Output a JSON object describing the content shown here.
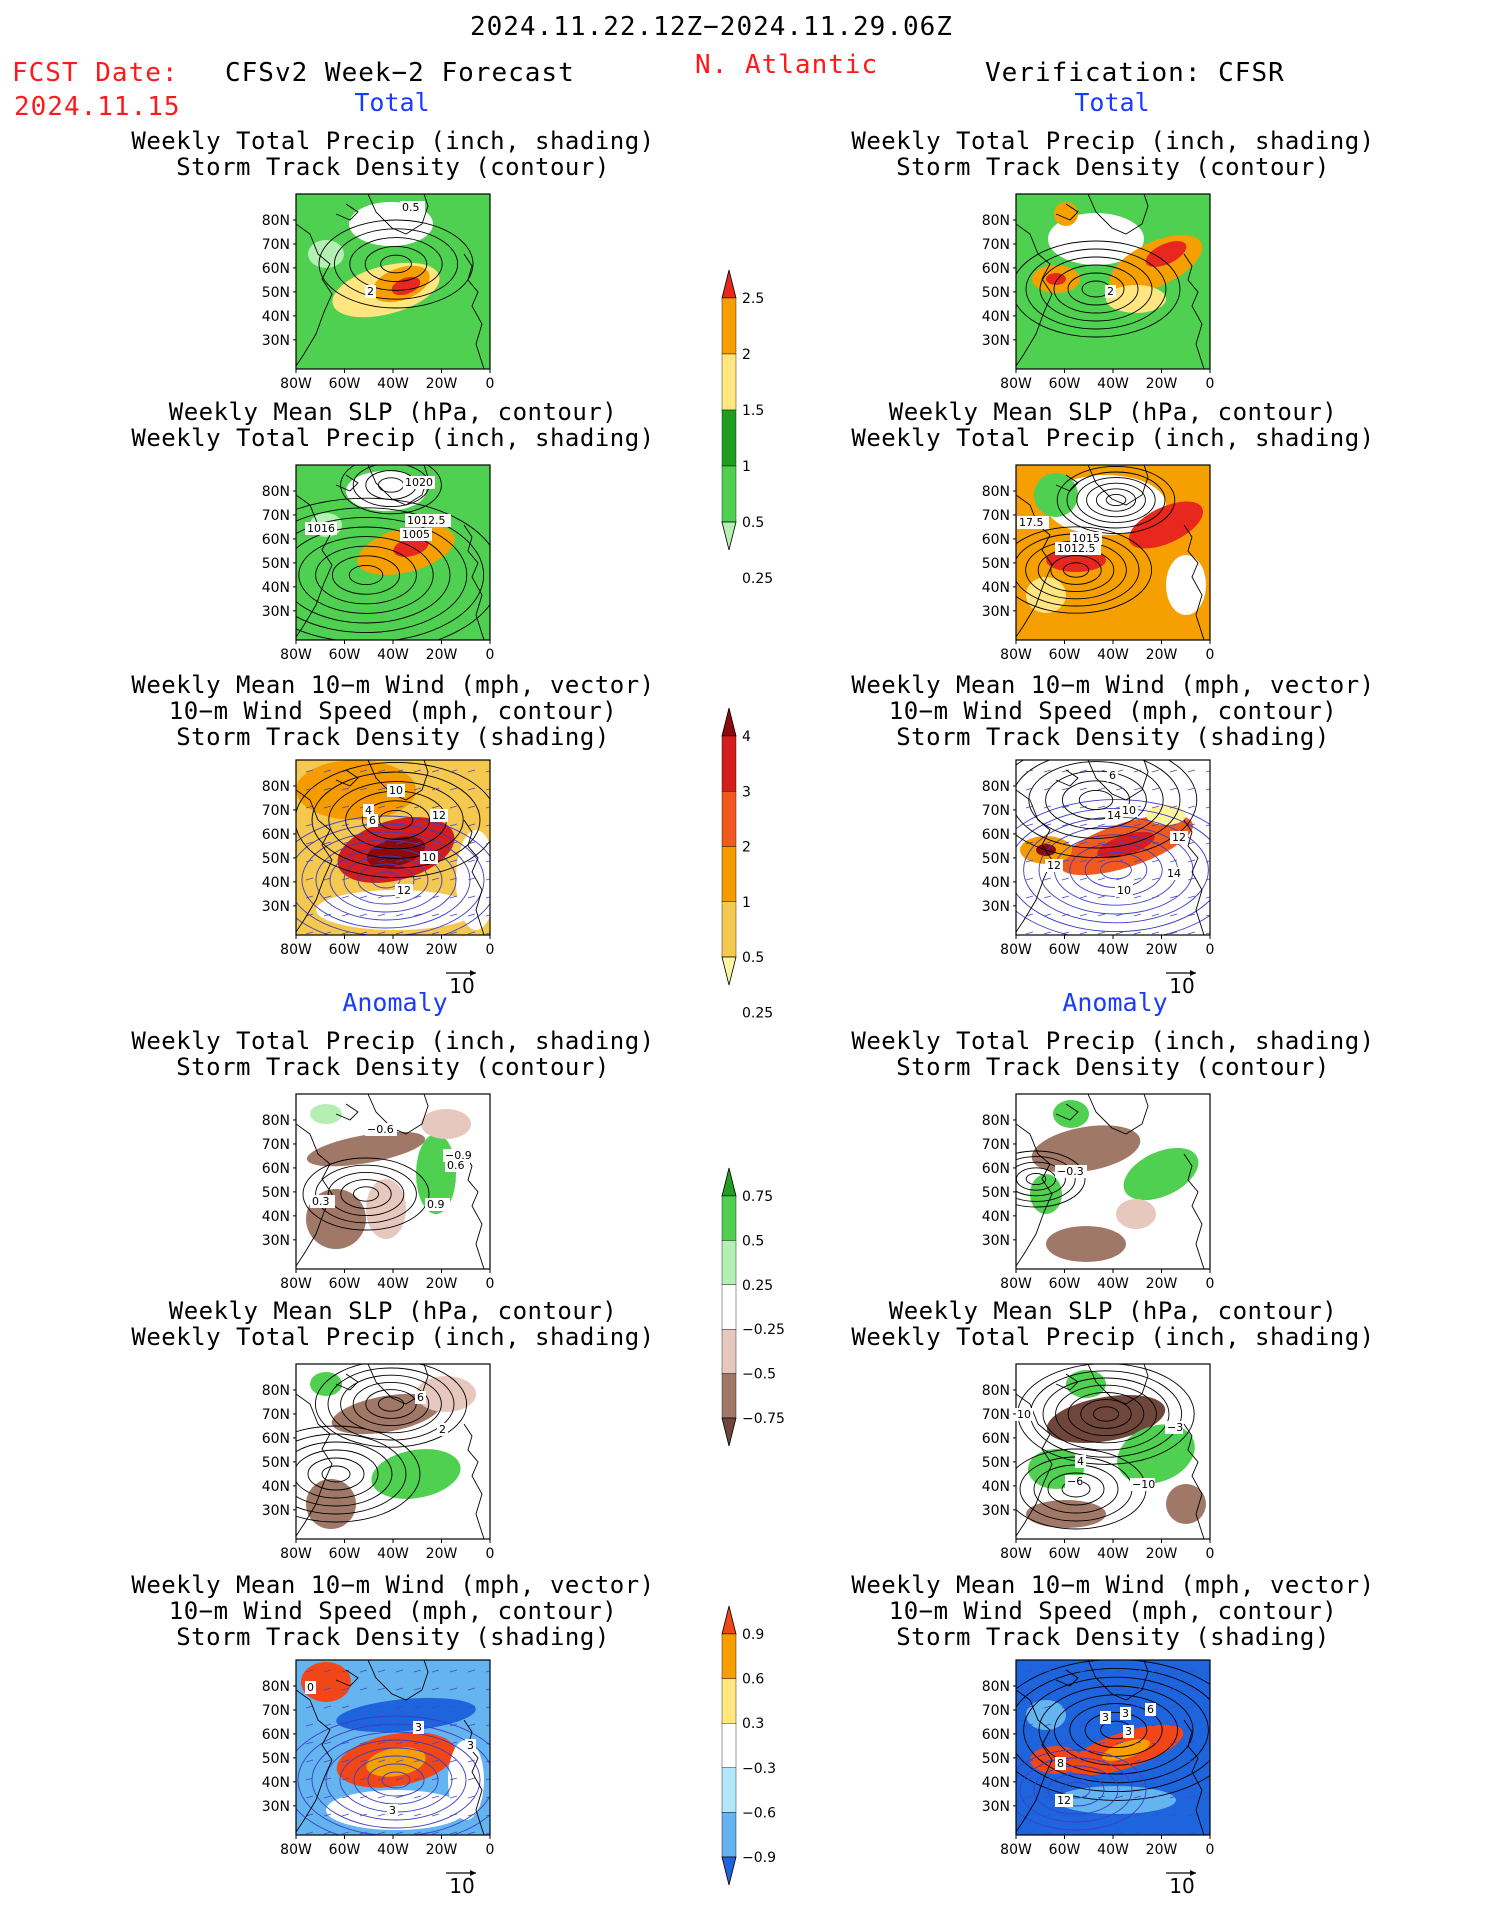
{
  "header": {
    "date_range": "2024.11.22.12Z−2024.11.29.06Z",
    "fcst_label": "FCST Date:",
    "fcst_date": "2024.11.15",
    "model": "CFSv2 Week−2 Forecast",
    "region": "N. Atlantic",
    "verification": "Verification: CFSR"
  },
  "sections": {
    "total": "Total",
    "anomaly": "Anomaly"
  },
  "panel_titles": {
    "precip_storm": [
      "Weekly Total Precip (inch, shading)",
      "Storm Track Density (contour)"
    ],
    "slp_precip": [
      "Weekly Mean SLP (hPa, contour)",
      "Weekly Total Precip (inch, shading)"
    ],
    "wind_storm": [
      "Weekly Mean 10−m Wind (mph, vector)",
      "10−m Wind Speed (mph, contour)",
      "Storm Track Density (shading)"
    ]
  },
  "axes": {
    "lat_ticks": [
      "80N",
      "70N",
      "60N",
      "50N",
      "40N",
      "30N"
    ],
    "lon_ticks": [
      "80W",
      "60W",
      "40W",
      "20W",
      "0"
    ]
  },
  "vector_ref": "10",
  "colorbars": {
    "precip_total": {
      "labels": [
        "2.5",
        "2",
        "1.5",
        "1",
        "0.5",
        "0.25"
      ],
      "colors": [
        "#e8281e",
        "#f5a000",
        "#ffe680",
        "#1e9e1e",
        "#50d050",
        "#b4f0b4"
      ]
    },
    "storm_total": {
      "labels": [
        "4",
        "3",
        "2",
        "1",
        "0.5",
        "0.25"
      ],
      "colors": [
        "#8c0a0a",
        "#d21e1e",
        "#f05a1e",
        "#f59b00",
        "#f5c850",
        "#fff5a0"
      ]
    },
    "precip_anom": {
      "labels": [
        "0.75",
        "0.5",
        "0.25",
        "−0.25",
        "−0.5",
        "−0.75"
      ],
      "colors": [
        "#1e9e1e",
        "#50d050",
        "#b4f0b4",
        "#ffffff",
        "#e6c8be",
        "#a07868",
        "#6e463c"
      ]
    },
    "storm_anom": {
      "labels": [
        "0.9",
        "0.6",
        "0.3",
        "−0.3",
        "−0.6",
        "−0.9"
      ],
      "colors": [
        "#f04618",
        "#f5a000",
        "#ffe680",
        "#ffffff",
        "#b4e6fa",
        "#64b4f0",
        "#1e64dc"
      ]
    }
  },
  "contour_labels": {
    "L1": [
      "0.5",
      "2"
    ],
    "R1": [
      "2"
    ],
    "L2": [
      "1020",
      "1016",
      "1012.5",
      "1005"
    ],
    "R2": [
      "17.5",
      "1015",
      "1012.5"
    ],
    "L3": [
      "10",
      "4",
      "6",
      "12",
      "10",
      "12"
    ],
    "R3": [
      "6",
      "10",
      "14",
      "12",
      "12",
      "14",
      "10"
    ],
    "L4": [
      "−0.6",
      "−0.9",
      "0.6",
      "0.3",
      "0.9"
    ],
    "R4": [
      "−0.3"
    ],
    "L5": [
      "6",
      "2"
    ],
    "R5": [
      "10",
      "−3",
      "4",
      "−6",
      "−10"
    ],
    "L6": [
      "0",
      "3",
      "3",
      "3"
    ],
    "R6": [
      "3",
      "3",
      "6",
      "3",
      "8",
      "12"
    ]
  },
  "colors": {
    "header_red": "#ff1a1a",
    "section_blue": "#1a3cff"
  }
}
